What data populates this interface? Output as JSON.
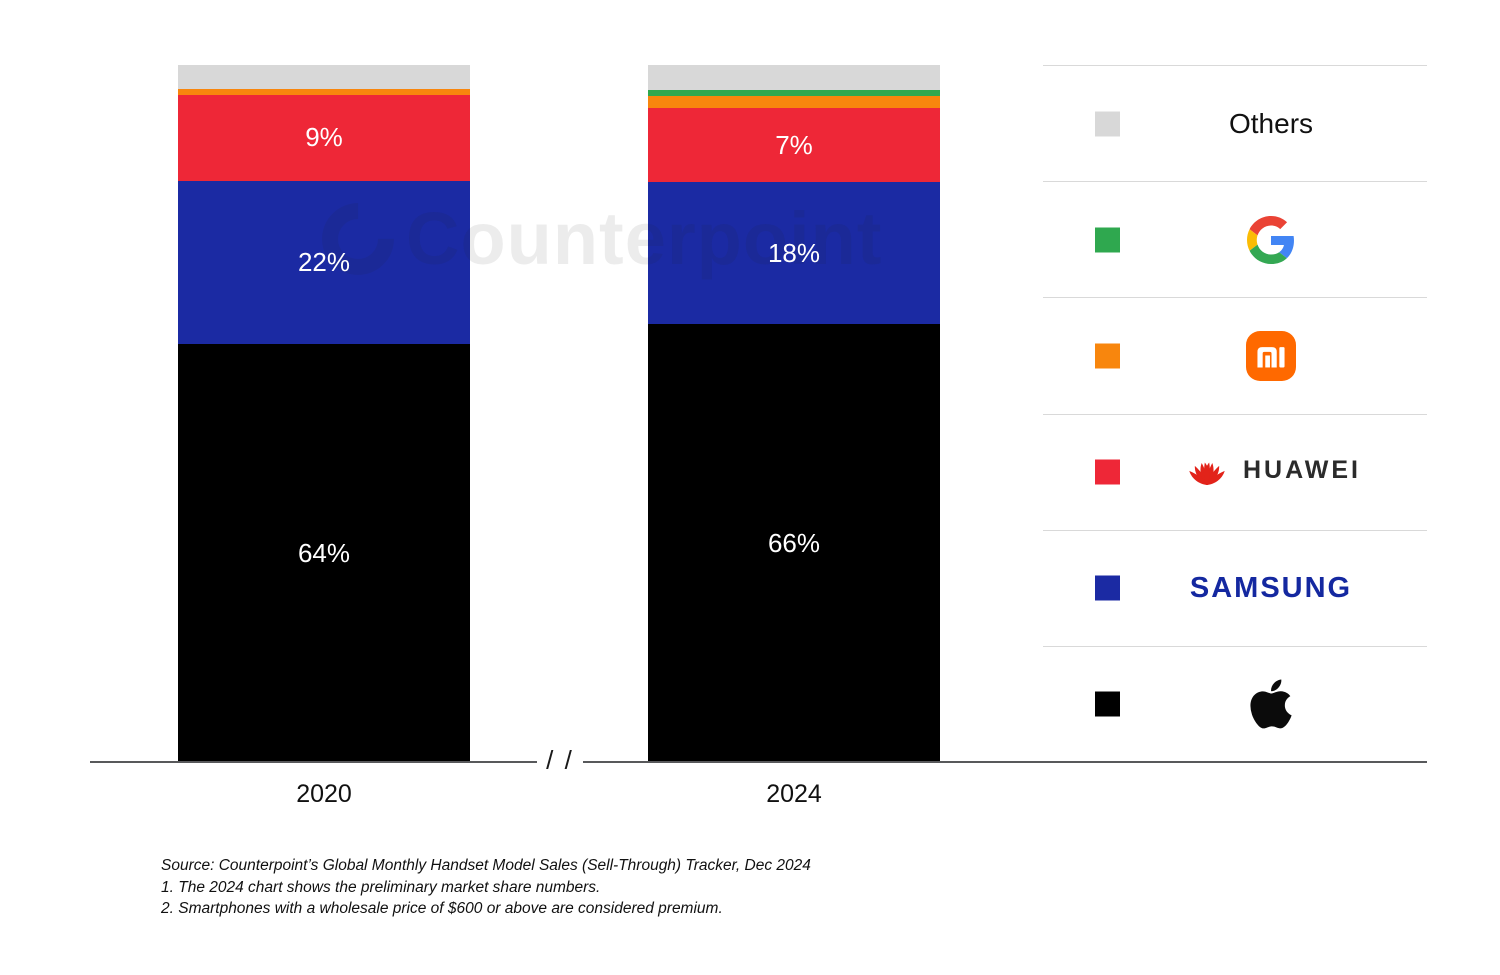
{
  "chart_data": {
    "type": "bar",
    "subtype": "stacked-100-percent",
    "title": "",
    "unit": "% share of premium (>$600 wholesale) smartphone sales",
    "categories": [
      "2020",
      "2024"
    ],
    "legend_position": "right",
    "grid": false,
    "axis_break_between_categories": true,
    "stack_order": "top-to-bottom",
    "series": [
      {
        "name": "Others",
        "color": "#d8d8d8",
        "values": [
          4,
          4
        ],
        "labels": [
          "",
          ""
        ]
      },
      {
        "name": "Google",
        "color": "#2fa84f",
        "values": [
          0,
          1
        ],
        "labels": [
          "",
          ""
        ]
      },
      {
        "name": "Xiaomi",
        "color": "#f8860d",
        "values": [
          1,
          2
        ],
        "labels": [
          "",
          ""
        ]
      },
      {
        "name": "Huawei",
        "color": "#ee2737",
        "values": [
          9,
          7
        ],
        "labels": [
          "9%",
          "7%"
        ]
      },
      {
        "name": "Samsung",
        "color": "#1b2aa3",
        "values": [
          22,
          18
        ],
        "labels": [
          "22%",
          "18%"
        ]
      },
      {
        "name": "Apple",
        "color": "#000000",
        "values": [
          64,
          66
        ],
        "labels": [
          "64%",
          "66%"
        ]
      }
    ]
  },
  "axis": {
    "break_marks": "/ /"
  },
  "legend": {
    "rows": [
      {
        "key": "others",
        "brand": "Others",
        "label": "Others",
        "swatch": "#d8d8d8"
      },
      {
        "key": "google",
        "brand": "Google",
        "swatch": "#2fa84f"
      },
      {
        "key": "xiaomi",
        "brand": "Xiaomi",
        "wordmark": "MI",
        "swatch": "#f8860d"
      },
      {
        "key": "huawei",
        "brand": "Huawei",
        "wordmark": "HUAWEI",
        "swatch": "#ee2737"
      },
      {
        "key": "samsung",
        "brand": "Samsung",
        "wordmark": "SAMSUNG",
        "swatch": "#1b2aa3"
      },
      {
        "key": "apple",
        "brand": "Apple",
        "swatch": "#000000"
      }
    ]
  },
  "watermark": {
    "text": "Counterpoint"
  },
  "source": {
    "line1": "Source: Counterpoint’s Global Monthly Handset Model Sales (Sell-Through) Tracker, Dec 2024",
    "line2": "1. The 2024 chart shows the preliminary market share numbers.",
    "line3": "2. Smartphones with a wholesale price of $600 or above are considered premium."
  }
}
